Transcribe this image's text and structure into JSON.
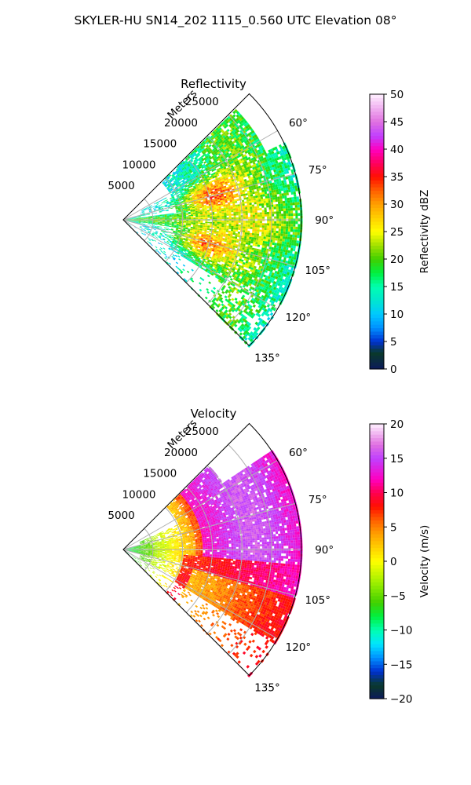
{
  "figure": {
    "suptitle": "SKYLER-HU  SN14_202  1115_0.560 UTC Elevation 08°"
  },
  "chart_data": [
    {
      "type": "heatmap",
      "projection": "polar-sector",
      "title": "Reflectivity",
      "radial_label": "Meters",
      "r_ticks": [
        5000,
        10000,
        15000,
        20000,
        25000
      ],
      "r_tick_labels": [
        "5000",
        "10000",
        "15000",
        "20000",
        "25000"
      ],
      "r_range": [
        0,
        30000
      ],
      "theta_ticks": [
        60,
        75,
        90,
        105,
        120,
        135
      ],
      "theta_tick_labels": [
        "60°",
        "75°",
        "90°",
        "105°",
        "120°",
        "135°"
      ],
      "theta_range": [
        45,
        135
      ],
      "grid": true,
      "colorbar": {
        "label": "Reflectivity dBZ",
        "min": 0,
        "max": 50,
        "ticks": [
          0,
          5,
          10,
          15,
          20,
          25,
          30,
          35,
          40,
          45,
          50
        ],
        "tick_labels": [
          "0",
          "5",
          "10",
          "15",
          "20",
          "25",
          "30",
          "35",
          "40",
          "45",
          "50"
        ],
        "stops": [
          {
            "v": 0,
            "c": "#0b1a5c"
          },
          {
            "v": 3,
            "c": "#0a3a2a"
          },
          {
            "v": 5,
            "c": "#0030d0"
          },
          {
            "v": 7.5,
            "c": "#0090ff"
          },
          {
            "v": 10,
            "c": "#00c8ff"
          },
          {
            "v": 12.5,
            "c": "#00e6d0"
          },
          {
            "v": 15,
            "c": "#00ffb0"
          },
          {
            "v": 17.5,
            "c": "#00f040"
          },
          {
            "v": 20,
            "c": "#40d000"
          },
          {
            "v": 22.5,
            "c": "#a0e000"
          },
          {
            "v": 25,
            "c": "#ffff00"
          },
          {
            "v": 27.5,
            "c": "#ffd000"
          },
          {
            "v": 30,
            "c": "#ffa000"
          },
          {
            "v": 32.5,
            "c": "#ff6000"
          },
          {
            "v": 35,
            "c": "#ff1000"
          },
          {
            "v": 37.5,
            "c": "#ff0060"
          },
          {
            "v": 40,
            "c": "#ff00c0"
          },
          {
            "v": 42.5,
            "c": "#c040ff"
          },
          {
            "v": 45,
            "c": "#e070e0"
          },
          {
            "v": 47.5,
            "c": "#f0b0f0"
          },
          {
            "v": 50,
            "c": "#fff0ff"
          }
        ]
      }
    },
    {
      "type": "heatmap",
      "projection": "polar-sector",
      "title": "Velocity",
      "radial_label": "Meters",
      "r_ticks": [
        5000,
        10000,
        15000,
        20000,
        25000
      ],
      "r_tick_labels": [
        "5000",
        "10000",
        "15000",
        "20000",
        "25000"
      ],
      "r_range": [
        0,
        30000
      ],
      "theta_ticks": [
        60,
        75,
        90,
        105,
        120,
        135
      ],
      "theta_tick_labels": [
        "60°",
        "75°",
        "90°",
        "105°",
        "120°",
        "135°"
      ],
      "theta_range": [
        45,
        135
      ],
      "grid": true,
      "colorbar": {
        "label": "Velocity (m/s)",
        "min": -20,
        "max": 20,
        "ticks": [
          -20,
          -15,
          -10,
          -5,
          0,
          5,
          10,
          15,
          20
        ],
        "tick_labels": [
          "−20",
          "−15",
          "−10",
          "−5",
          "0",
          "5",
          "10",
          "15",
          "20"
        ],
        "stops": [
          {
            "v": -20,
            "c": "#0b1a5c"
          },
          {
            "v": -18,
            "c": "#0a3a2a"
          },
          {
            "v": -16,
            "c": "#0030d0"
          },
          {
            "v": -14,
            "c": "#0090ff"
          },
          {
            "v": -12,
            "c": "#00e6ff"
          },
          {
            "v": -10,
            "c": "#00ffb0"
          },
          {
            "v": -8,
            "c": "#00f040"
          },
          {
            "v": -6,
            "c": "#40d000"
          },
          {
            "v": -3,
            "c": "#a0f000"
          },
          {
            "v": 0,
            "c": "#ffff00"
          },
          {
            "v": 2,
            "c": "#ffd000"
          },
          {
            "v": 4,
            "c": "#ffa000"
          },
          {
            "v": 6,
            "c": "#ff6000"
          },
          {
            "v": 8,
            "c": "#ff1000"
          },
          {
            "v": 10,
            "c": "#ff0050"
          },
          {
            "v": 12,
            "c": "#ff00c0"
          },
          {
            "v": 15,
            "c": "#c040ff"
          },
          {
            "v": 17,
            "c": "#e070e0"
          },
          {
            "v": 20,
            "c": "#fff0ff"
          }
        ]
      }
    }
  ]
}
